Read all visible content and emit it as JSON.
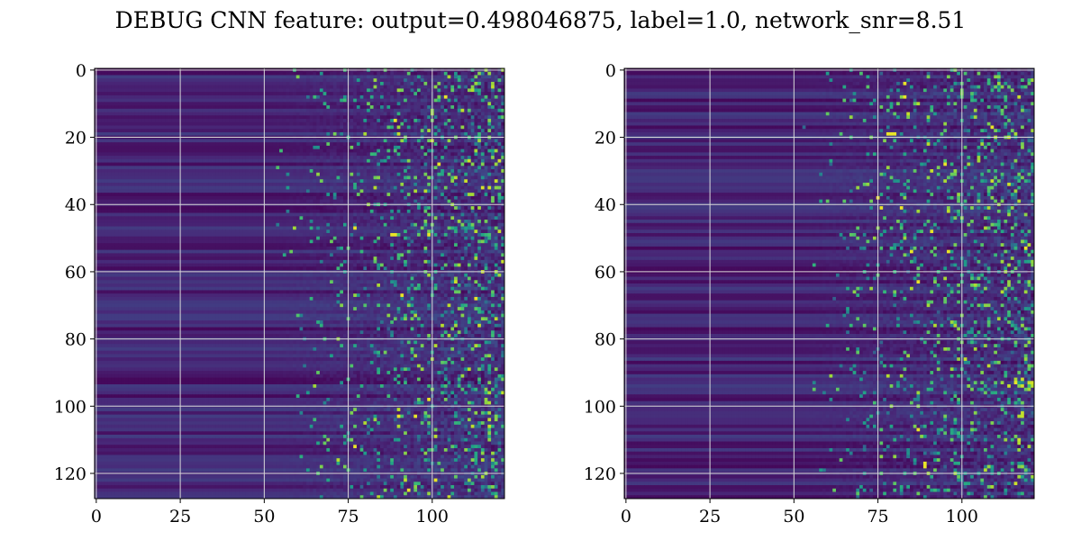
{
  "figure": {
    "title": "DEBUG CNN feature: output=0.498046875, label=1.0, network_snr=8.51"
  },
  "chart_data": [
    {
      "type": "heatmap",
      "colormap": "viridis",
      "rows": 128,
      "cols": 122,
      "grid": true,
      "xticks": [
        0,
        25,
        50,
        75,
        100
      ],
      "yticks": [
        0,
        20,
        40,
        60,
        80,
        100,
        120
      ],
      "xlim": [
        -0.5,
        121.5
      ],
      "ylim": [
        127.5,
        -0.5
      ],
      "xlabel": "",
      "ylabel": "",
      "noise_seed": 7,
      "hot_spots": [
        [
          15,
          89
        ],
        [
          49,
          88
        ],
        [
          49,
          89
        ],
        [
          49,
          99
        ],
        [
          67,
          91
        ],
        [
          68,
          113
        ],
        [
          103,
          90
        ],
        [
          103,
          95
        ],
        [
          98,
          99
        ],
        [
          112,
          77
        ],
        [
          125,
          93
        ],
        [
          28,
          102
        ],
        [
          47,
          77
        ],
        [
          8,
          104
        ],
        [
          122,
          101
        ]
      ]
    },
    {
      "type": "heatmap",
      "colormap": "viridis",
      "rows": 128,
      "cols": 122,
      "grid": true,
      "xticks": [
        0,
        25,
        50,
        75,
        100
      ],
      "yticks": [
        0,
        20,
        40,
        60,
        80,
        100,
        120
      ],
      "xlim": [
        -0.5,
        121.5
      ],
      "ylim": [
        127.5,
        -0.5
      ],
      "xlabel": "",
      "ylabel": "",
      "noise_seed": 23,
      "hot_spots": [
        [
          19,
          78
        ],
        [
          19,
          79
        ],
        [
          19,
          80
        ],
        [
          8,
          83
        ],
        [
          38,
          75
        ],
        [
          41,
          76
        ],
        [
          41,
          82
        ],
        [
          48,
          91
        ],
        [
          54,
          85
        ],
        [
          54,
          96
        ],
        [
          53,
          119
        ],
        [
          63,
          87
        ],
        [
          93,
          116
        ],
        [
          117,
          89
        ],
        [
          118,
          89
        ],
        [
          107,
          87
        ],
        [
          17,
          109
        ],
        [
          28,
          95
        ],
        [
          4,
          83
        ]
      ]
    }
  ]
}
